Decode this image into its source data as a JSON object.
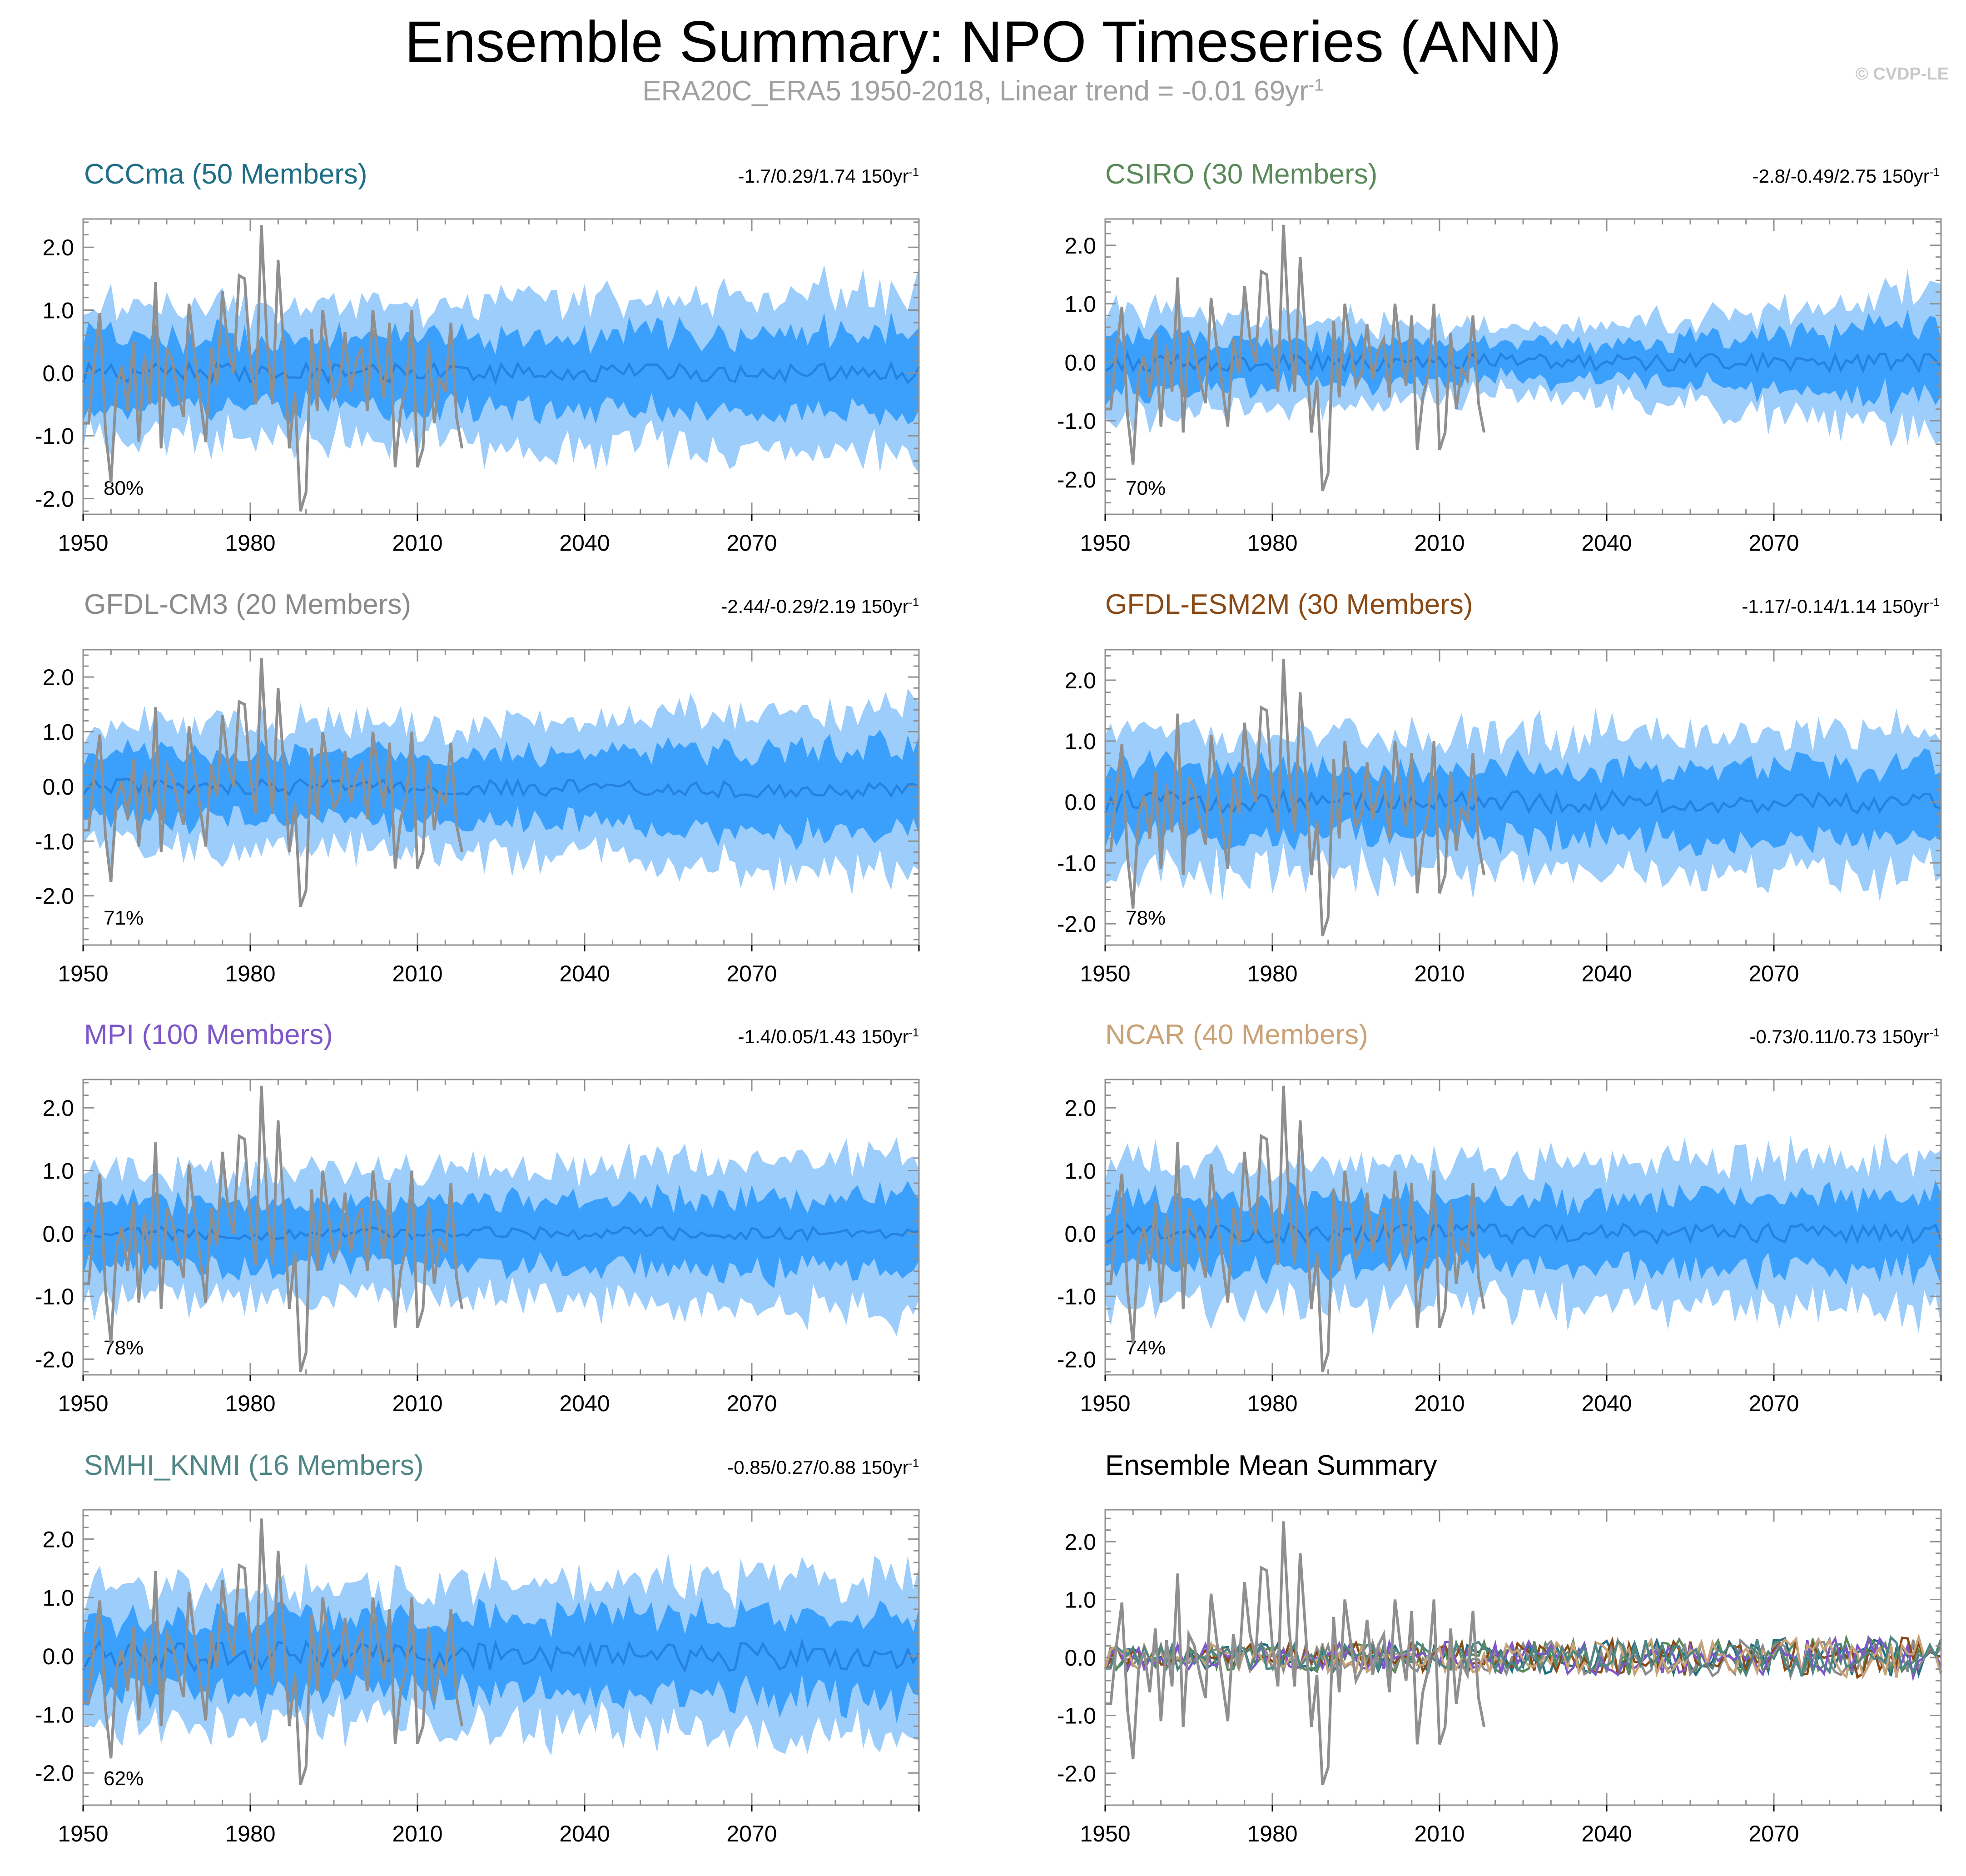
{
  "title": "Ensemble Summary: NPO Timeseries (ANN)",
  "subtitle": {
    "prefix": "ERA20C_ERA5 1950-2018, Linear trend = -0.01 69yr",
    "sup": "-1"
  },
  "watermark": "© CVDP-LE",
  "colors": {
    "outer_band": "#9ccdfb",
    "inner_band": "#3ba0fc",
    "mean_line": "#2582e0",
    "obs_line": "#8f8f8f",
    "frame": "#8f8f8f"
  },
  "chart_data": [
    {
      "id": "cccma",
      "type": "area",
      "title": "CCCma (50 Members)",
      "title_color": "#1f6e86",
      "trend": "-1.7/0.29/1.74 150yr",
      "trend_sup": "-1",
      "pct": "80%",
      "env_outer": 1.05,
      "env_inner": 0.55,
      "env_growth": 0.25,
      "env_shift": 0.0,
      "amp_mean": 0.15,
      "xlim": [
        1950,
        2100
      ],
      "ylim": [
        -2.25,
        2.45
      ],
      "yticks": [
        2.0,
        1.0,
        0.0,
        -1.0,
        -2.0
      ],
      "ytick_labels": [
        "2.0",
        "1.0",
        "0.0",
        "-1.0",
        "-2.0"
      ],
      "xticks": [
        1950,
        1980,
        2010,
        2040,
        2070
      ],
      "xtick_labels": [
        "1950",
        "1980",
        "2010",
        "2040",
        "2070"
      ]
    },
    {
      "id": "csiro",
      "type": "area",
      "title": "CSIRO (30 Members)",
      "title_color": "#5a8a5a",
      "trend": "-2.8/-0.49/2.75 150yr",
      "trend_sup": "-1",
      "pct": "70%",
      "env_outer": 1.0,
      "env_inner": 0.5,
      "env_growth": 0.7,
      "env_shift": 0.0,
      "amp_mean": 0.15,
      "dip": true,
      "xlim": [
        1950,
        2100
      ],
      "ylim": [
        -2.6,
        2.45
      ],
      "yticks": [
        2.0,
        1.0,
        0.0,
        -1.0,
        -2.0
      ],
      "ytick_labels": [
        "2.0",
        "1.0",
        "0.0",
        "-1.0",
        "-2.0"
      ],
      "xticks": [
        1950,
        1980,
        2010,
        2040,
        2070
      ],
      "xtick_labels": [
        "1950",
        "1980",
        "2010",
        "2040",
        "2070"
      ]
    },
    {
      "id": "gfdlcm3",
      "type": "area",
      "title": "GFDL-CM3 (20 Members)",
      "title_color": "#8a8a8a",
      "trend": "-2.44/-0.29/2.19 150yr",
      "trend_sup": "-1",
      "pct": "71%",
      "env_outer": 1.15,
      "env_inner": 0.6,
      "env_growth": 0.35,
      "env_shift": -0.15,
      "amp_mean": 0.15,
      "xlim": [
        1950,
        2100
      ],
      "ylim": [
        -2.9,
        2.5
      ],
      "yticks": [
        2.0,
        1.0,
        0.0,
        -1.0,
        -2.0
      ],
      "ytick_labels": [
        "2.0",
        "1.0",
        "0.0",
        "-1.0",
        "-2.0"
      ],
      "xticks": [
        1950,
        1980,
        2010,
        2040,
        2070
      ],
      "xtick_labels": [
        "1950",
        "1980",
        "2010",
        "2040",
        "2070"
      ]
    },
    {
      "id": "gfdlesm2m",
      "type": "area",
      "title": "GFDL-ESM2M (30 Members)",
      "title_color": "#8a4a16",
      "trend": "-1.17/-0.14/1.14 150yr",
      "trend_sup": "-1",
      "pct": "78%",
      "env_outer": 1.1,
      "env_inner": 0.55,
      "env_growth": 0.1,
      "env_shift": 0.0,
      "amp_mean": 0.18,
      "xlim": [
        1950,
        2100
      ],
      "ylim": [
        -2.35,
        2.5
      ],
      "yticks": [
        2.0,
        1.0,
        0.0,
        -1.0,
        -2.0
      ],
      "ytick_labels": [
        "2.0",
        "1.0",
        "0.0",
        "-1.0",
        "-2.0"
      ],
      "xticks": [
        1950,
        1980,
        2010,
        2040,
        2070
      ],
      "xtick_labels": [
        "1950",
        "1980",
        "2010",
        "2040",
        "2070"
      ]
    },
    {
      "id": "mpi",
      "type": "area",
      "title": "MPI (100 Members)",
      "title_color": "#7e57c8",
      "trend": "-1.4/0.05/1.43 150yr",
      "trend_sup": "-1",
      "pct": "78%",
      "env_outer": 1.0,
      "env_inner": 0.5,
      "env_growth": 0.25,
      "env_shift": 0.0,
      "amp_mean": 0.1,
      "xlim": [
        1950,
        2100
      ],
      "ylim": [
        -2.25,
        2.45
      ],
      "yticks": [
        2.0,
        1.0,
        0.0,
        -1.0,
        -2.0
      ],
      "ytick_labels": [
        "2.0",
        "1.0",
        "0.0",
        "-1.0",
        "-2.0"
      ],
      "xticks": [
        1950,
        1980,
        2010,
        2040,
        2070
      ],
      "xtick_labels": [
        "1950",
        "1980",
        "2010",
        "2040",
        "2070"
      ]
    },
    {
      "id": "ncar",
      "type": "area",
      "title": "NCAR (40 Members)",
      "title_color": "#c9a278",
      "trend": "-0.73/0.11/0.73 150yr",
      "trend_sup": "-1",
      "pct": "74%",
      "env_outer": 1.1,
      "env_inner": 0.55,
      "env_growth": 0.1,
      "env_shift": 0.0,
      "amp_mean": 0.15,
      "xlim": [
        1950,
        2100
      ],
      "ylim": [
        -2.25,
        2.45
      ],
      "yticks": [
        2.0,
        1.0,
        0.0,
        -1.0,
        -2.0
      ],
      "ytick_labels": [
        "2.0",
        "1.0",
        "0.0",
        "-1.0",
        "-2.0"
      ],
      "xticks": [
        1950,
        1980,
        2010,
        2040,
        2070
      ],
      "xtick_labels": [
        "1950",
        "1980",
        "2010",
        "2040",
        "2070"
      ]
    },
    {
      "id": "smhi",
      "type": "area",
      "title": "SMHI_KNMI (16 Members)",
      "title_color": "#4e8585",
      "trend": "-0.85/0.27/0.88 150yr",
      "trend_sup": "-1",
      "pct": "62%",
      "env_outer": 1.15,
      "env_inner": 0.6,
      "env_growth": 0.2,
      "env_shift": 0.0,
      "amp_mean": 0.25,
      "xlim": [
        1950,
        2100
      ],
      "ylim": [
        -2.55,
        2.5
      ],
      "yticks": [
        2.0,
        1.0,
        0.0,
        -1.0,
        -2.0
      ],
      "ytick_labels": [
        "2.0",
        "1.0",
        "0.0",
        "-1.0",
        "-2.0"
      ],
      "xticks": [
        1950,
        1980,
        2010,
        2040,
        2070
      ],
      "xtick_labels": [
        "1950",
        "1980",
        "2010",
        "2040",
        "2070"
      ]
    },
    {
      "id": "summary",
      "type": "line",
      "title": "Ensemble Mean Summary",
      "title_color": "#000000",
      "trend": "",
      "trend_sup": "",
      "pct": "",
      "series_colors": [
        "#1f6e86",
        "#5a8a5a",
        "#8a8a8a",
        "#8a4a16",
        "#7e57c8",
        "#c9a278",
        "#4e8585"
      ],
      "xlim": [
        1950,
        2100
      ],
      "ylim": [
        -2.55,
        2.55
      ],
      "yticks": [
        2.0,
        1.0,
        0.0,
        -1.0,
        -2.0
      ],
      "ytick_labels": [
        "2.0",
        "1.0",
        "0.0",
        "-1.0",
        "-2.0"
      ],
      "xticks": [
        1950,
        1980,
        2010,
        2040,
        2070
      ],
      "xtick_labels": [
        "1950",
        "1980",
        "2010",
        "2040",
        "2070"
      ]
    }
  ],
  "observations": {
    "name": "ERA20C_ERA5",
    "years": [
      1950,
      1951,
      1952,
      1953,
      1954,
      1955,
      1956,
      1957,
      1958,
      1959,
      1960,
      1961,
      1962,
      1963,
      1964,
      1965,
      1966,
      1967,
      1968,
      1969,
      1970,
      1971,
      1972,
      1973,
      1974,
      1975,
      1976,
      1977,
      1978,
      1979,
      1980,
      1981,
      1982,
      1983,
      1984,
      1985,
      1986,
      1987,
      1988,
      1989,
      1990,
      1991,
      1992,
      1993,
      1994,
      1995,
      1996,
      1997,
      1998,
      1999,
      2000,
      2001,
      2002,
      2003,
      2004,
      2005,
      2006,
      2007,
      2008,
      2009,
      2010,
      2011,
      2012,
      2013,
      2014,
      2015,
      2016,
      2017,
      2018
    ],
    "values": [
      -0.8,
      -0.8,
      0.2,
      0.95,
      -0.9,
      -1.75,
      -0.2,
      0.1,
      -0.6,
      0.5,
      -1.1,
      0.3,
      -0.5,
      1.45,
      -1.2,
      0.4,
      0.2,
      -0.3,
      -0.7,
      1.1,
      0.3,
      -0.4,
      -1.1,
      0.4,
      -0.2,
      1.3,
      0.4,
      0.0,
      1.55,
      1.5,
      0.2,
      -0.5,
      2.35,
      0.5,
      -0.5,
      1.8,
      0.4,
      -1.2,
      -0.3,
      -2.2,
      -1.9,
      0.7,
      -0.6,
      1.0,
      0.3,
      -0.4,
      -0.2,
      0.65,
      -0.3,
      0.2,
      0.4,
      -0.6,
      1.0,
      0.2,
      -0.4,
      0.8,
      -1.5,
      -0.6,
      -0.2,
      1.0,
      -1.5,
      -1.2,
      0.5,
      -0.8,
      -0.1,
      -0.3,
      0.8,
      -0.7,
      -1.2
    ]
  }
}
